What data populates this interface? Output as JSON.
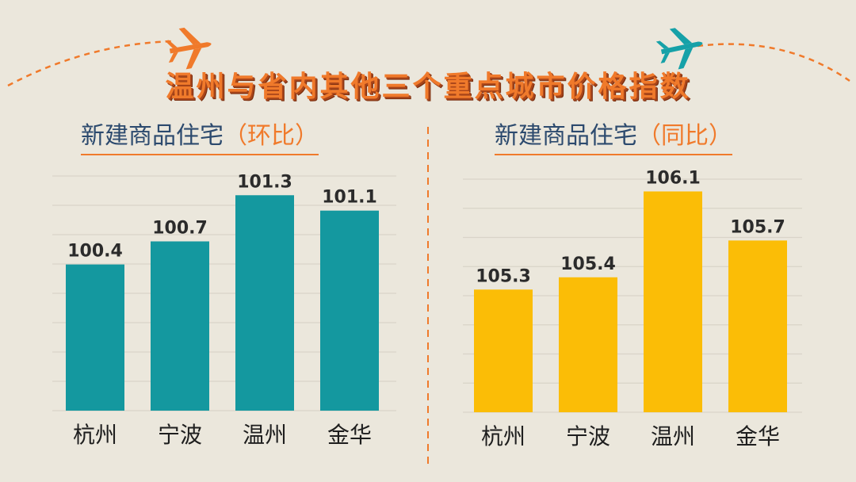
{
  "title": "温州与省内其他三个重点城市价格指数",
  "icons": {
    "left_plane_color": "#f07a2b",
    "right_plane_color": "#16a1a8",
    "left_plane": "airplane-icon",
    "right_plane": "airplane-icon"
  },
  "chart_data": [
    {
      "type": "bar",
      "subtitle_main": "新建商品住宅",
      "subtitle_paren": "（环比）",
      "categories": [
        "杭州",
        "宁波",
        "温州",
        "金华"
      ],
      "values": [
        100.4,
        100.7,
        101.3,
        101.1
      ],
      "value_labels": [
        "100.4",
        "100.7",
        "101.3",
        "101.1"
      ],
      "color": "#14989f",
      "ylim": [
        98.5,
        101.55
      ],
      "grid": true
    },
    {
      "type": "bar",
      "subtitle_main": "新建商品住宅",
      "subtitle_paren": "（同比）",
      "categories": [
        "杭州",
        "宁波",
        "温州",
        "金华"
      ],
      "values": [
        105.3,
        105.4,
        106.1,
        105.7
      ],
      "value_labels": [
        "105.3",
        "105.4",
        "106.1",
        "105.7"
      ],
      "color": "#fbbd06",
      "ylim": [
        104.3,
        106.2
      ],
      "grid": true
    }
  ]
}
